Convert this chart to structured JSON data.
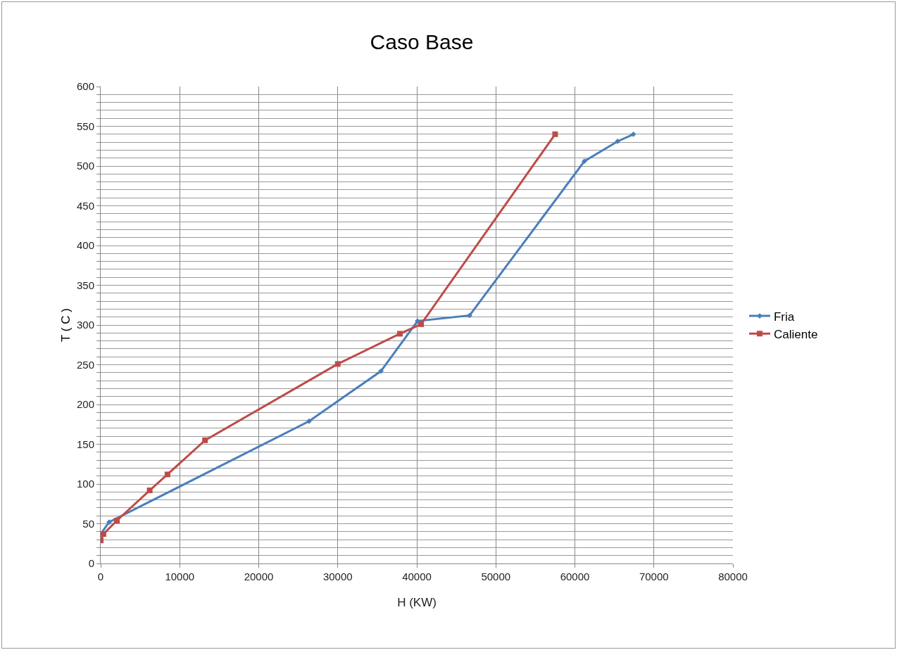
{
  "chart_data": {
    "type": "line",
    "title": "Caso Base",
    "xlabel": "H (KW)",
    "ylabel": "T ( C )",
    "series": [
      {
        "name": "Fria",
        "color": "#4a7ebb",
        "marker": "diamond",
        "x": [
          0,
          1070,
          26370,
          35460,
          40090,
          46680,
          61200,
          65400,
          67400
        ],
        "values": [
          37,
          52,
          179,
          242,
          305,
          312,
          506,
          531,
          540
        ]
      },
      {
        "name": "Caliente",
        "color": "#be4b48",
        "marker": "square",
        "x": [
          0,
          350,
          2050,
          6200,
          8450,
          13200,
          30000,
          37860,
          40540,
          57500
        ],
        "values": [
          29,
          37,
          54,
          92,
          112,
          155,
          251,
          289,
          301,
          540
        ]
      }
    ],
    "xlim": [
      0,
      80000
    ],
    "xticks": [
      0,
      10000,
      20000,
      30000,
      40000,
      50000,
      60000,
      70000,
      80000
    ],
    "ylim": [
      0,
      600
    ],
    "yticks": [
      0,
      {
        "value": 10,
        "label": null
      },
      {
        "value": 20,
        "label": null
      },
      {
        "value": 30,
        "label": null
      },
      {
        "value": 40,
        "label": null
      },
      50,
      {
        "value": 60,
        "label": null
      },
      {
        "value": 70,
        "label": null
      },
      {
        "value": 80,
        "label": null
      },
      {
        "value": 90,
        "label": null
      },
      100,
      {
        "value": 110,
        "label": null
      },
      {
        "value": 120,
        "label": null
      },
      {
        "value": 130,
        "label": null
      },
      {
        "value": 140,
        "label": null
      },
      150,
      {
        "value": 160,
        "label": null
      },
      {
        "value": 170,
        "label": null
      },
      {
        "value": 180,
        "label": null
      },
      {
        "value": 190,
        "label": null
      },
      200,
      {
        "value": 210,
        "label": null
      },
      {
        "value": 220,
        "label": null
      },
      {
        "value": 230,
        "label": null
      },
      {
        "value": 240,
        "label": null
      },
      250,
      {
        "value": 260,
        "label": null
      },
      {
        "value": 270,
        "label": null
      },
      {
        "value": 280,
        "label": null
      },
      {
        "value": 290,
        "label": null
      },
      300,
      {
        "value": 310,
        "label": null
      },
      {
        "value": 320,
        "label": null
      },
      {
        "value": 330,
        "label": null
      },
      {
        "value": 340,
        "label": null
      },
      350,
      {
        "value": 360,
        "label": null
      },
      {
        "value": 370,
        "label": null
      },
      {
        "value": 380,
        "label": null
      },
      {
        "value": 390,
        "label": null
      },
      400,
      {
        "value": 410,
        "label": null
      },
      {
        "value": 420,
        "label": null
      },
      {
        "value": 430,
        "label": null
      },
      {
        "value": 440,
        "label": null
      },
      450,
      {
        "value": 460,
        "label": null
      },
      {
        "value": 470,
        "label": null
      },
      {
        "value": 480,
        "label": null
      },
      {
        "value": 490,
        "label": null
      },
      500,
      {
        "value": 510,
        "label": null
      },
      {
        "value": 520,
        "label": null
      },
      {
        "value": 530,
        "label": null
      },
      {
        "value": 540,
        "label": null
      },
      550,
      {
        "value": 560,
        "label": null
      },
      {
        "value": 570,
        "label": null
      },
      {
        "value": 580,
        "label": null
      },
      {
        "value": 590,
        "label": null
      },
      600
    ],
    "grid": true,
    "legend": "right",
    "line_style": "solid"
  }
}
